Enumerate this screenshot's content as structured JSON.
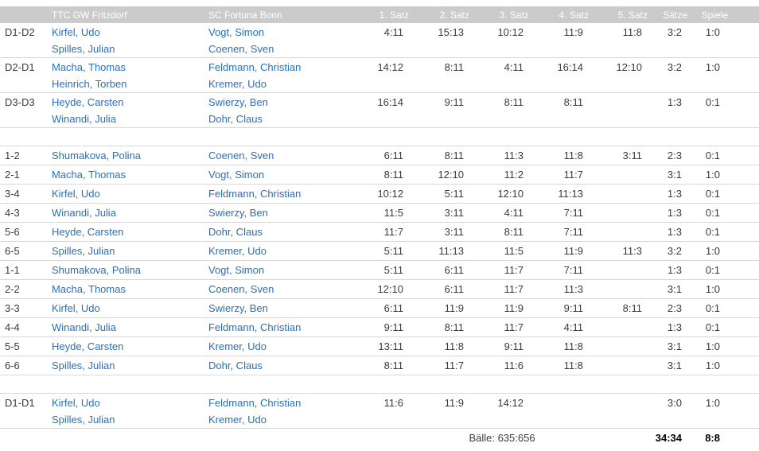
{
  "teams": {
    "home": "TTC GW Fritzdorf",
    "away": "SC Fortuna Bonn"
  },
  "header": {
    "columns": [
      "",
      "TTC GW Fritzdorf",
      "SC Fortuna Bonn",
      "1. Satz",
      "2. Satz",
      "3. Satz",
      "4. Satz",
      "5. Satz",
      "Sätze",
      "Spiele"
    ]
  },
  "rows": [
    {
      "kind": "double",
      "code": "D1-D2",
      "home": [
        "Kirfel, Udo",
        "Spilles, Julian"
      ],
      "away": [
        "Vogt, Simon",
        "Coenen, Sven"
      ],
      "sets": [
        "4:11",
        "15:13",
        "10:12",
        "11:9",
        "11:8"
      ],
      "saetze": "3:2",
      "spiele": "1:0"
    },
    {
      "kind": "double",
      "code": "D2-D1",
      "home": [
        "Macha, Thomas",
        "Heinrich, Torben"
      ],
      "away": [
        "Feldmann, Christian",
        "Kremer, Udo"
      ],
      "sets": [
        "14:12",
        "8:11",
        "4:11",
        "16:14",
        "12:10"
      ],
      "saetze": "3:2",
      "spiele": "1:0"
    },
    {
      "kind": "double",
      "code": "D3-D3",
      "home": [
        "Heyde, Carsten",
        "Winandi, Julia"
      ],
      "away": [
        "Swierzy, Ben",
        "Dohr, Claus"
      ],
      "sets": [
        "16:14",
        "9:11",
        "8:11",
        "8:11",
        ""
      ],
      "saetze": "1:3",
      "spiele": "0:1"
    },
    {
      "kind": "spacer"
    },
    {
      "kind": "single",
      "code": "1-2",
      "home": [
        "Shumakova, Polina"
      ],
      "away": [
        "Coenen, Sven"
      ],
      "sets": [
        "6:11",
        "8:11",
        "11:3",
        "11:8",
        "3:11"
      ],
      "saetze": "2:3",
      "spiele": "0:1"
    },
    {
      "kind": "single",
      "code": "2-1",
      "home": [
        "Macha, Thomas"
      ],
      "away": [
        "Vogt, Simon"
      ],
      "sets": [
        "8:11",
        "12:10",
        "11:2",
        "11:7",
        ""
      ],
      "saetze": "3:1",
      "spiele": "1:0"
    },
    {
      "kind": "single",
      "code": "3-4",
      "home": [
        "Kirfel, Udo"
      ],
      "away": [
        "Feldmann, Christian"
      ],
      "sets": [
        "10:12",
        "5:11",
        "12:10",
        "11:13",
        ""
      ],
      "saetze": "1:3",
      "spiele": "0:1"
    },
    {
      "kind": "single",
      "code": "4-3",
      "home": [
        "Winandi, Julia"
      ],
      "away": [
        "Swierzy, Ben"
      ],
      "sets": [
        "11:5",
        "3:11",
        "4:11",
        "7:11",
        ""
      ],
      "saetze": "1:3",
      "spiele": "0:1"
    },
    {
      "kind": "single",
      "code": "5-6",
      "home": [
        "Heyde, Carsten"
      ],
      "away": [
        "Dohr, Claus"
      ],
      "sets": [
        "11:7",
        "3:11",
        "8:11",
        "7:11",
        ""
      ],
      "saetze": "1:3",
      "spiele": "0:1"
    },
    {
      "kind": "single",
      "code": "6-5",
      "home": [
        "Spilles, Julian"
      ],
      "away": [
        "Kremer, Udo"
      ],
      "sets": [
        "5:11",
        "11:13",
        "11:5",
        "11:9",
        "11:3"
      ],
      "saetze": "3:2",
      "spiele": "1:0"
    },
    {
      "kind": "single",
      "code": "1-1",
      "home": [
        "Shumakova, Polina"
      ],
      "away": [
        "Vogt, Simon"
      ],
      "sets": [
        "5:11",
        "6:11",
        "11:7",
        "7:11",
        ""
      ],
      "saetze": "1:3",
      "spiele": "0:1"
    },
    {
      "kind": "single",
      "code": "2-2",
      "home": [
        "Macha, Thomas"
      ],
      "away": [
        "Coenen, Sven"
      ],
      "sets": [
        "12:10",
        "6:11",
        "11:7",
        "11:3",
        ""
      ],
      "saetze": "3:1",
      "spiele": "1:0"
    },
    {
      "kind": "single",
      "code": "3-3",
      "home": [
        "Kirfel, Udo"
      ],
      "away": [
        "Swierzy, Ben"
      ],
      "sets": [
        "6:11",
        "11:9",
        "11:9",
        "9:11",
        "8:11"
      ],
      "saetze": "2:3",
      "spiele": "0:1"
    },
    {
      "kind": "single",
      "code": "4-4",
      "home": [
        "Winandi, Julia"
      ],
      "away": [
        "Feldmann, Christian"
      ],
      "sets": [
        "9:11",
        "8:11",
        "11:7",
        "4:11",
        ""
      ],
      "saetze": "1:3",
      "spiele": "0:1"
    },
    {
      "kind": "single",
      "code": "5-5",
      "home": [
        "Heyde, Carsten"
      ],
      "away": [
        "Kremer, Udo"
      ],
      "sets": [
        "13:11",
        "11:8",
        "9:11",
        "11:8",
        ""
      ],
      "saetze": "3:1",
      "spiele": "1:0"
    },
    {
      "kind": "single",
      "code": "6-6",
      "home": [
        "Spilles, Julian"
      ],
      "away": [
        "Dohr, Claus"
      ],
      "sets": [
        "8:11",
        "11:7",
        "11:6",
        "11:8",
        ""
      ],
      "saetze": "3:1",
      "spiele": "1:0"
    },
    {
      "kind": "spacer"
    },
    {
      "kind": "double",
      "code": "D1-D1",
      "home": [
        "Kirfel, Udo",
        "Spilles, Julian"
      ],
      "away": [
        "Feldmann, Christian",
        "Kremer, Udo"
      ],
      "sets": [
        "11:6",
        "11:9",
        "14:12",
        "",
        ""
      ],
      "saetze": "3:0",
      "spiele": "1:0"
    }
  ],
  "footer": {
    "balls": "Bälle: 635:656",
    "sets_total": "34:34",
    "games_total": "8:8"
  },
  "colors": {
    "header_bg": "#cbcbcb",
    "header_text": "#ffffff",
    "link_blue": "#2a70b8",
    "text": "#3b3b3b",
    "row_border": "#d8d8d8"
  }
}
